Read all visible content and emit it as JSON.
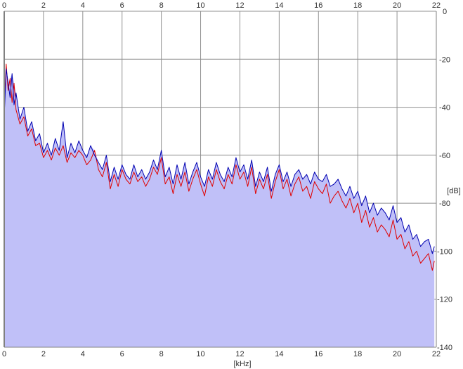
{
  "chart_data": {
    "type": "line",
    "title": "",
    "xlabel": "[kHz]",
    "ylabel": "[dB]",
    "xlim": [
      0,
      22
    ],
    "ylim": [
      -140,
      0
    ],
    "x_ticks": [
      0,
      2,
      4,
      6,
      8,
      10,
      12,
      14,
      16,
      18,
      20,
      22
    ],
    "y_ticks": [
      0,
      -20,
      -40,
      -60,
      -80,
      -100,
      -120,
      -140
    ],
    "x_tick_labels": [
      "0",
      "2",
      "4",
      "6",
      "8",
      "10",
      "12",
      "14",
      "16",
      "18",
      "20",
      "22"
    ],
    "y_tick_labels": [
      "0",
      "-20",
      "-40",
      "-60",
      "-80",
      "-100",
      "-120",
      "-140"
    ],
    "grid": true,
    "legend": "none",
    "fill_color": "#c0c0f8",
    "series": [
      {
        "color": "#e00000",
        "x": [
          0,
          0.1,
          0.2,
          0.3,
          0.4,
          0.5,
          0.6,
          0.8,
          1.0,
          1.2,
          1.4,
          1.6,
          1.8,
          2.0,
          2.2,
          2.4,
          2.6,
          2.8,
          3.0,
          3.2,
          3.4,
          3.6,
          3.8,
          4.0,
          4.2,
          4.4,
          4.6,
          4.8,
          5.0,
          5.2,
          5.4,
          5.6,
          5.8,
          6.0,
          6.2,
          6.4,
          6.6,
          6.8,
          7.0,
          7.2,
          7.4,
          7.6,
          7.8,
          8.0,
          8.2,
          8.4,
          8.6,
          8.8,
          9.0,
          9.2,
          9.4,
          9.6,
          9.8,
          10.0,
          10.2,
          10.4,
          10.6,
          10.8,
          11.0,
          11.2,
          11.4,
          11.6,
          11.8,
          12.0,
          12.2,
          12.4,
          12.6,
          12.8,
          13.0,
          13.2,
          13.4,
          13.6,
          13.8,
          14.0,
          14.2,
          14.4,
          14.6,
          14.8,
          15.0,
          15.2,
          15.4,
          15.6,
          15.8,
          16.0,
          16.2,
          16.4,
          16.6,
          16.8,
          17.0,
          17.2,
          17.4,
          17.6,
          17.8,
          18.0,
          18.2,
          18.4,
          18.6,
          18.8,
          19.0,
          19.2,
          19.4,
          19.6,
          19.8,
          20.0,
          20.2,
          20.4,
          20.6,
          20.8,
          21.0,
          21.2,
          21.4,
          21.6,
          21.8,
          21.9
        ],
        "y": [
          -40,
          -22,
          -33,
          -28,
          -38,
          -30,
          -41,
          -47,
          -44,
          -52,
          -49,
          -56,
          -55,
          -61,
          -58,
          -62,
          -57,
          -60,
          -56,
          -63,
          -59,
          -61,
          -58,
          -60,
          -64,
          -62,
          -58,
          -66,
          -69,
          -63,
          -74,
          -68,
          -73,
          -66,
          -70,
          -72,
          -67,
          -71,
          -69,
          -73,
          -70,
          -65,
          -68,
          -61,
          -72,
          -69,
          -76,
          -68,
          -73,
          -67,
          -75,
          -70,
          -66,
          -72,
          -77,
          -69,
          -73,
          -66,
          -71,
          -74,
          -68,
          -72,
          -64,
          -70,
          -67,
          -73,
          -65,
          -76,
          -70,
          -74,
          -68,
          -78,
          -71,
          -66,
          -74,
          -70,
          -77,
          -72,
          -69,
          -75,
          -73,
          -78,
          -71,
          -74,
          -76,
          -72,
          -80,
          -77,
          -75,
          -79,
          -82,
          -78,
          -84,
          -80,
          -88,
          -83,
          -90,
          -86,
          -92,
          -89,
          -91,
          -94,
          -87,
          -95,
          -93,
          -99,
          -96,
          -102,
          -100,
          -105,
          -103,
          -101,
          -108,
          -104
        ]
      },
      {
        "color": "#0000b0",
        "x": [
          0,
          0.1,
          0.2,
          0.3,
          0.4,
          0.5,
          0.6,
          0.8,
          1.0,
          1.2,
          1.4,
          1.6,
          1.8,
          2.0,
          2.2,
          2.4,
          2.6,
          2.8,
          3.0,
          3.2,
          3.4,
          3.6,
          3.8,
          4.0,
          4.2,
          4.4,
          4.6,
          4.8,
          5.0,
          5.2,
          5.4,
          5.6,
          5.8,
          6.0,
          6.2,
          6.4,
          6.6,
          6.8,
          7.0,
          7.2,
          7.4,
          7.6,
          7.8,
          8.0,
          8.2,
          8.4,
          8.6,
          8.8,
          9.0,
          9.2,
          9.4,
          9.6,
          9.8,
          10.0,
          10.2,
          10.4,
          10.6,
          10.8,
          11.0,
          11.2,
          11.4,
          11.6,
          11.8,
          12.0,
          12.2,
          12.4,
          12.6,
          12.8,
          13.0,
          13.2,
          13.4,
          13.6,
          13.8,
          14.0,
          14.2,
          14.4,
          14.6,
          14.8,
          15.0,
          15.2,
          15.4,
          15.6,
          15.8,
          16.0,
          16.2,
          16.4,
          16.6,
          16.8,
          17.0,
          17.2,
          17.4,
          17.6,
          17.8,
          18.0,
          18.2,
          18.4,
          18.6,
          18.8,
          19.0,
          19.2,
          19.4,
          19.6,
          19.8,
          20.0,
          20.2,
          20.4,
          20.6,
          20.8,
          21.0,
          21.2,
          21.4,
          21.6,
          21.8,
          21.9
        ],
        "y": [
          -44,
          -24,
          -30,
          -36,
          -26,
          -39,
          -34,
          -45,
          -40,
          -50,
          -46,
          -54,
          -51,
          -59,
          -55,
          -60,
          -53,
          -58,
          -46,
          -61,
          -55,
          -59,
          -54,
          -58,
          -61,
          -56,
          -60,
          -63,
          -66,
          -60,
          -71,
          -65,
          -70,
          -64,
          -68,
          -70,
          -64,
          -69,
          -66,
          -70,
          -67,
          -62,
          -66,
          -58,
          -69,
          -65,
          -72,
          -64,
          -70,
          -63,
          -72,
          -67,
          -63,
          -69,
          -73,
          -66,
          -70,
          -63,
          -68,
          -71,
          -65,
          -69,
          -61,
          -67,
          -64,
          -70,
          -62,
          -73,
          -67,
          -71,
          -65,
          -75,
          -68,
          -64,
          -71,
          -67,
          -73,
          -68,
          -66,
          -70,
          -68,
          -72,
          -67,
          -70,
          -71,
          -68,
          -73,
          -72,
          -70,
          -74,
          -77,
          -73,
          -78,
          -75,
          -81,
          -77,
          -84,
          -80,
          -85,
          -82,
          -84,
          -87,
          -81,
          -88,
          -86,
          -92,
          -89,
          -95,
          -93,
          -98,
          -96,
          -95,
          -101,
          -98
        ]
      }
    ]
  }
}
